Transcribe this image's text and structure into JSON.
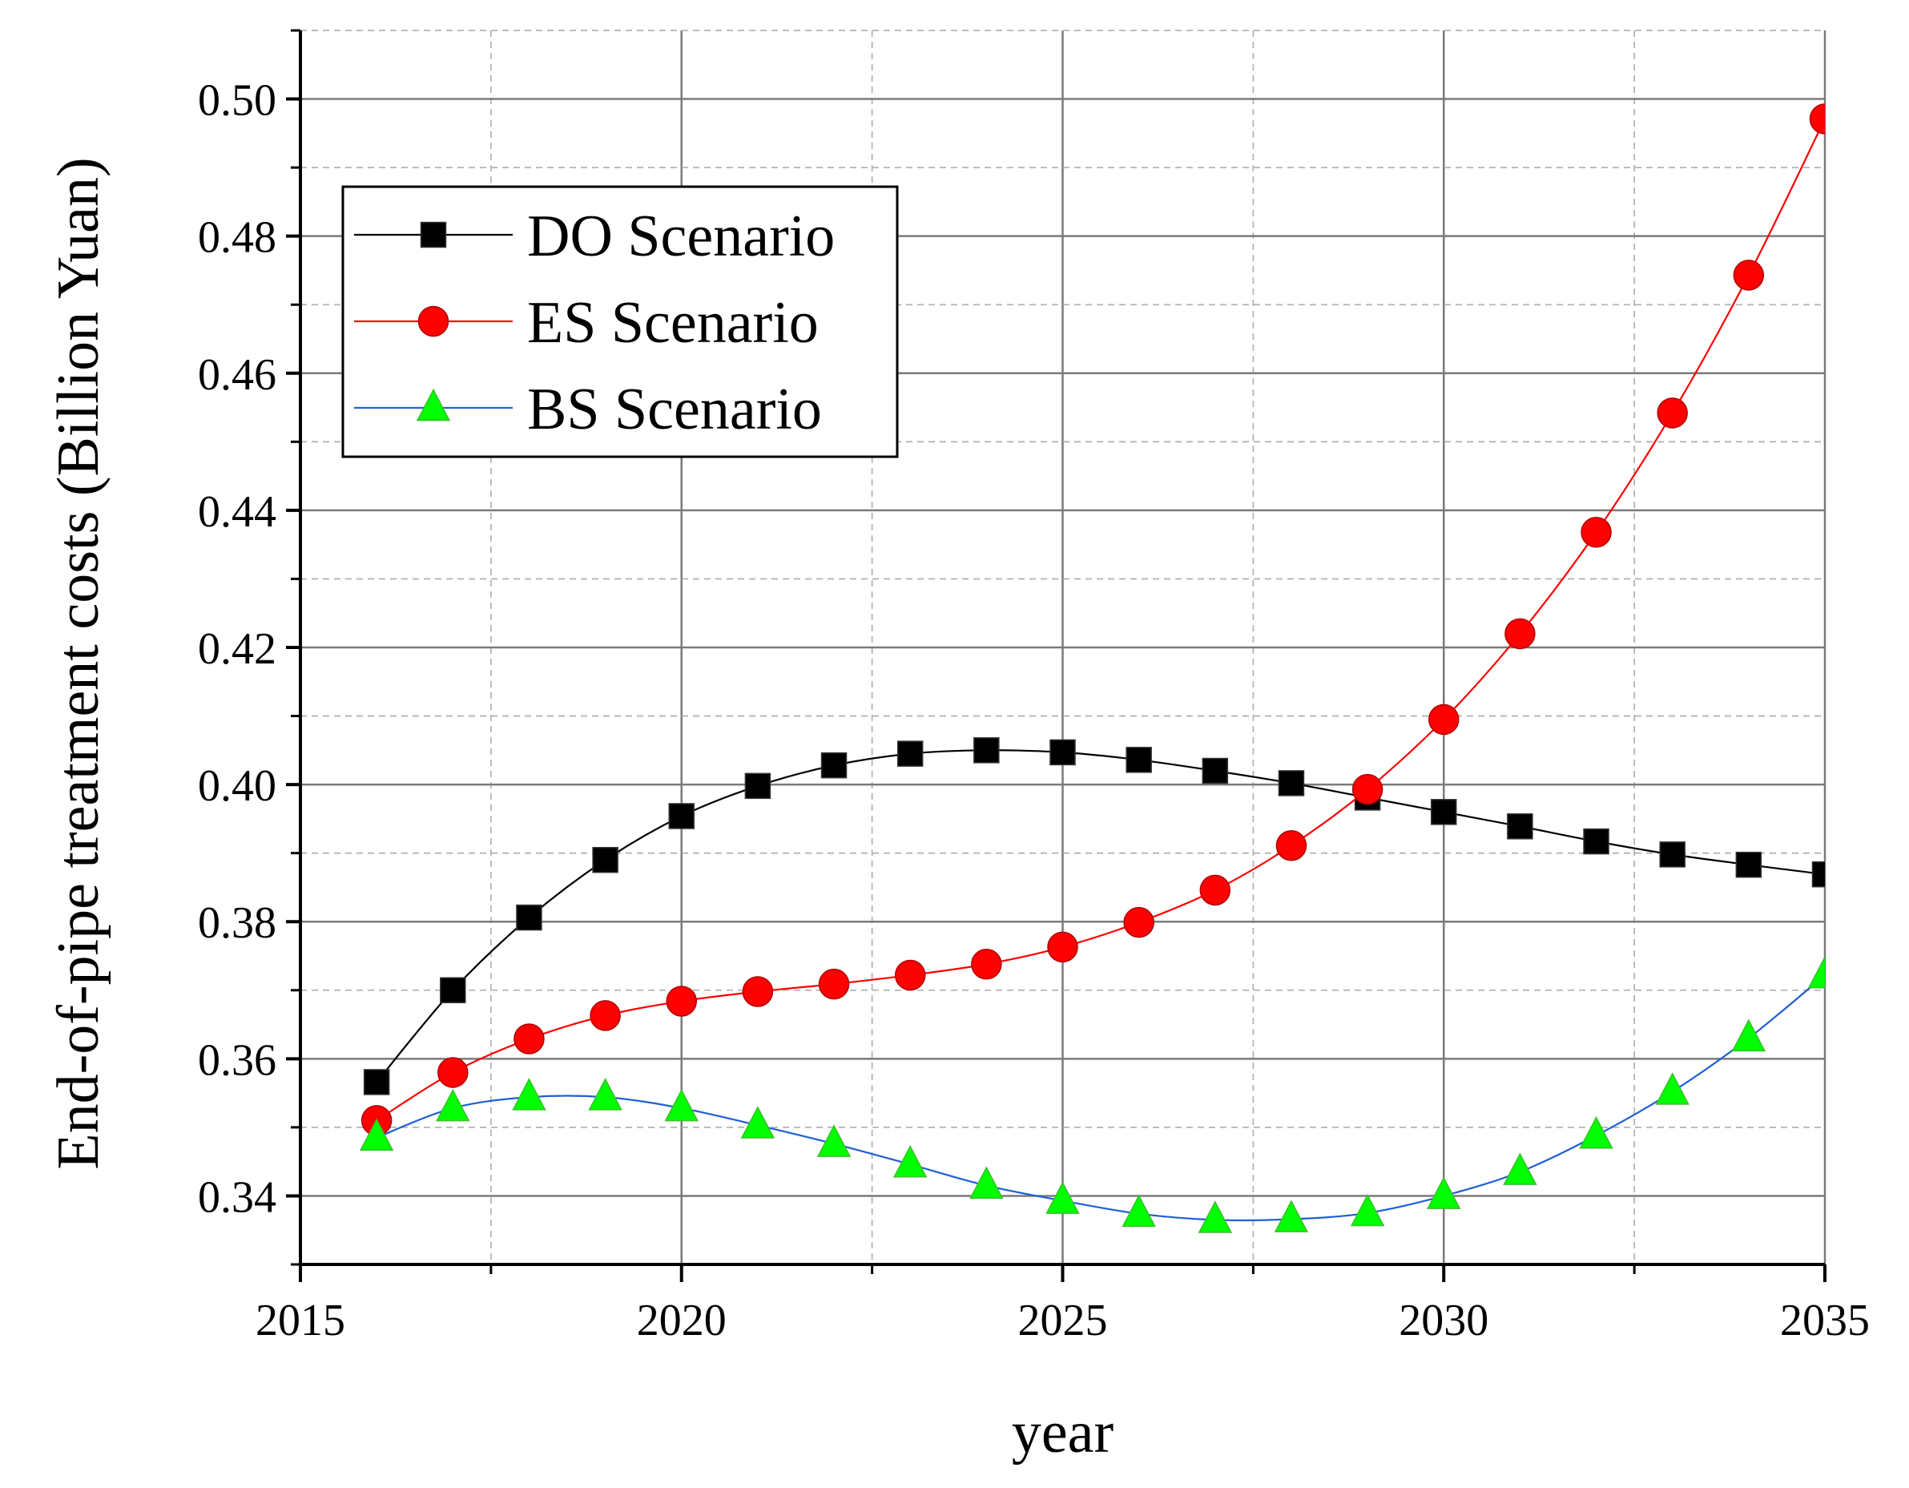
{
  "chart_data": {
    "type": "line",
    "title": "",
    "xlabel": "year",
    "ylabel": "End-of-pipe treatment costs (Billion Yuan)",
    "xlim": [
      2015,
      2035
    ],
    "ylim": [
      0.33,
      0.51
    ],
    "x_ticks": [
      2015,
      2020,
      2025,
      2030,
      2035
    ],
    "x_tick_labels": [
      "2015",
      "2020",
      "2025",
      "2030",
      "2035"
    ],
    "y_ticks": [
      0.34,
      0.36,
      0.38,
      0.4,
      0.42,
      0.44,
      0.46,
      0.48,
      0.5
    ],
    "y_tick_labels": [
      "0.34",
      "0.36",
      "0.38",
      "0.40",
      "0.42",
      "0.44",
      "0.46",
      "0.48",
      "0.50"
    ],
    "grid": true,
    "legend_position": "top-left",
    "x": [
      2016,
      2017,
      2018,
      2019,
      2020,
      2021,
      2022,
      2023,
      2024,
      2025,
      2026,
      2027,
      2028,
      2029,
      2030,
      2031,
      2032,
      2033,
      2034,
      2035
    ],
    "series": [
      {
        "name": "DO Scenario",
        "line_color": "#000000",
        "marker_color": "#000000",
        "marker": "square",
        "values": [
          0.3566,
          0.37,
          0.3806,
          0.389,
          0.3954,
          0.3998,
          0.4028,
          0.4045,
          0.405,
          0.4047,
          0.4036,
          0.402,
          0.4002,
          0.3981,
          0.396,
          0.3939,
          0.3917,
          0.3898,
          0.3883,
          0.3869
        ]
      },
      {
        "name": "ES Scenario",
        "line_color": "#ff0000",
        "marker_color": "#ff0000",
        "marker": "circle",
        "values": [
          0.351,
          0.358,
          0.3629,
          0.3663,
          0.3684,
          0.3698,
          0.3709,
          0.3722,
          0.3738,
          0.3763,
          0.3799,
          0.3846,
          0.3911,
          0.3993,
          0.4095,
          0.422,
          0.4368,
          0.4542,
          0.4743,
          0.4971
        ]
      },
      {
        "name": "BS Scenario",
        "line_color": "#1f5fd6",
        "marker_color": "#00ff00",
        "marker": "triangle",
        "values": [
          0.3485,
          0.3528,
          0.3544,
          0.3544,
          0.3528,
          0.3503,
          0.3476,
          0.3446,
          0.3415,
          0.3393,
          0.3374,
          0.3365,
          0.3366,
          0.3375,
          0.34,
          0.3435,
          0.3488,
          0.3552,
          0.363,
          0.3722
        ]
      }
    ]
  }
}
